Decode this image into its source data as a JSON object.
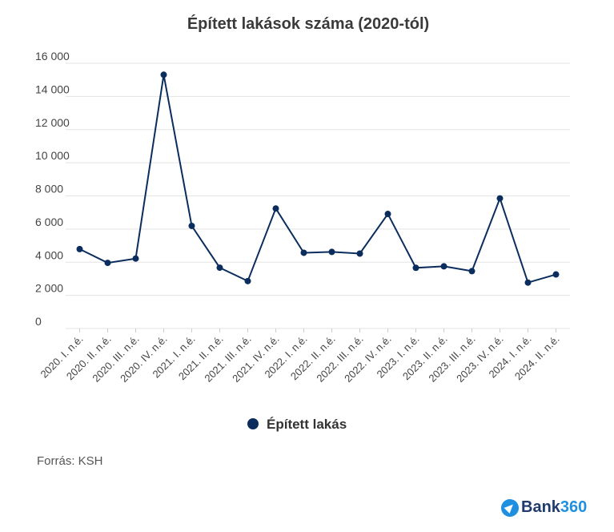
{
  "chart_data": {
    "type": "line",
    "title": "Épített lakások száma (2020-tól)",
    "categories": [
      "2020. I. n.é.",
      "2020. II. n.é.",
      "2020. III. n.é.",
      "2020. IV. n.é.",
      "2021. I. n.é.",
      "2021. II. n.é.",
      "2021. III. n.é.",
      "2021. IV. n.é.",
      "2022. I. n.é.",
      "2022. II. n.é.",
      "2022. III. n.é.",
      "2022. IV. n.é.",
      "2023. I. n.é.",
      "2023. II. n.é.",
      "2023. III. n.é.",
      "2023. IV. n.é.",
      "2024. I. n.é.",
      "2024. II. n.é."
    ],
    "series": [
      {
        "name": "Épített lakás",
        "color": "#0b2d5e",
        "values": [
          4790,
          3960,
          4220,
          15310,
          6190,
          3670,
          2860,
          7240,
          4570,
          4620,
          4520,
          6910,
          3660,
          3750,
          3460,
          7850,
          2770,
          3260
        ]
      }
    ],
    "yticks": [
      "0",
      "2 000",
      "4 000",
      "6 000",
      "8 000",
      "10 000",
      "12 000",
      "14 000",
      "16 000"
    ],
    "ylim": [
      0,
      16000
    ],
    "grid": true,
    "legend_position": "bottom"
  },
  "source": "Forrás: KSH",
  "logo": {
    "word": "Bank",
    "number": "360",
    "icon": "compass-arrow-icon"
  }
}
